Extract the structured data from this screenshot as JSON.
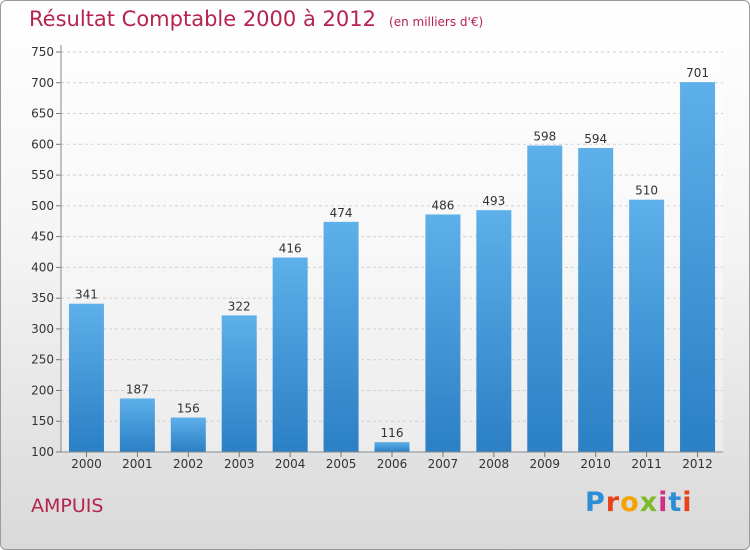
{
  "title": "Résultat Comptable 2000 à 2012",
  "unit": "(en milliers d'€)",
  "commune": "AMPUIS",
  "logo": {
    "text": "Proxiti",
    "colors": [
      "#2c8fd6",
      "#e8421b",
      "#f2a300",
      "#7dbb2d",
      "#cf2f86",
      "#2c8fd6",
      "#e8421b"
    ]
  },
  "colors": {
    "title": "#b5234e",
    "bar_top": "#5eb0ea",
    "bar_bottom": "#2b7fc4"
  },
  "chart_data": {
    "type": "bar",
    "title": "Résultat Comptable 2000 à 2012",
    "categories": [
      "2000",
      "2001",
      "2002",
      "2003",
      "2004",
      "2005",
      "2006",
      "2007",
      "2008",
      "2009",
      "2010",
      "2011",
      "2012"
    ],
    "values": [
      341,
      187,
      156,
      322,
      416,
      474,
      116,
      486,
      493,
      598,
      594,
      510,
      701
    ],
    "ylim": [
      100,
      750
    ],
    "yticks": [
      100,
      150,
      200,
      250,
      300,
      350,
      400,
      450,
      500,
      550,
      600,
      650,
      700,
      750
    ],
    "grid": true,
    "xlabel": "",
    "ylabel": ""
  }
}
